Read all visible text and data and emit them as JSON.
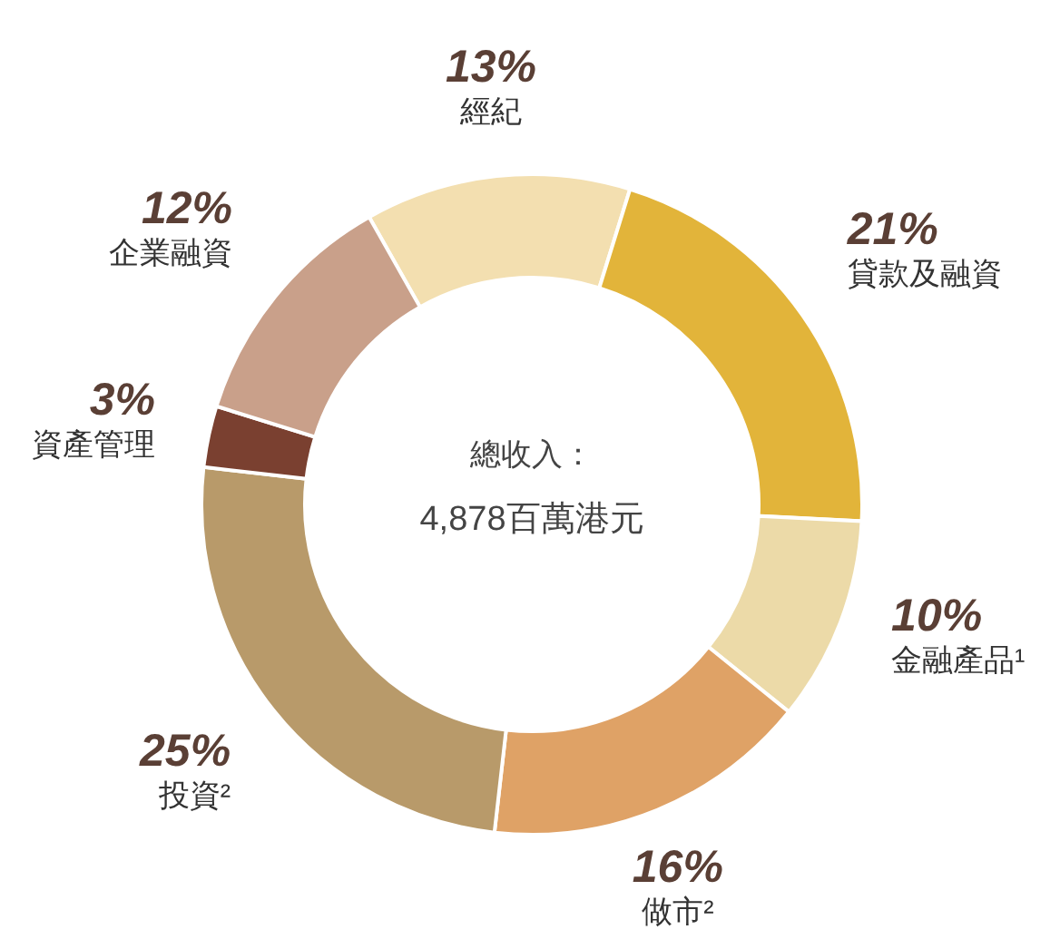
{
  "chart_data": {
    "type": "donut",
    "categories": [
      "經紀",
      "貸款及融資",
      "金融產品¹",
      "做市²",
      "投資²",
      "資產管理",
      "企業融資"
    ],
    "values": [
      13,
      21,
      10,
      16,
      25,
      3,
      12
    ],
    "value_labels": [
      "13%",
      "21%",
      "10%",
      "16%",
      "25%",
      "3%",
      "12%"
    ],
    "colors": [
      "#f3dfb0",
      "#e2b43a",
      "#ecdaa8",
      "#dfa266",
      "#b89a6a",
      "#7a4030",
      "#c9a08a"
    ],
    "annotations": [
      "總收入：",
      "4,878百萬港元"
    ]
  }
}
